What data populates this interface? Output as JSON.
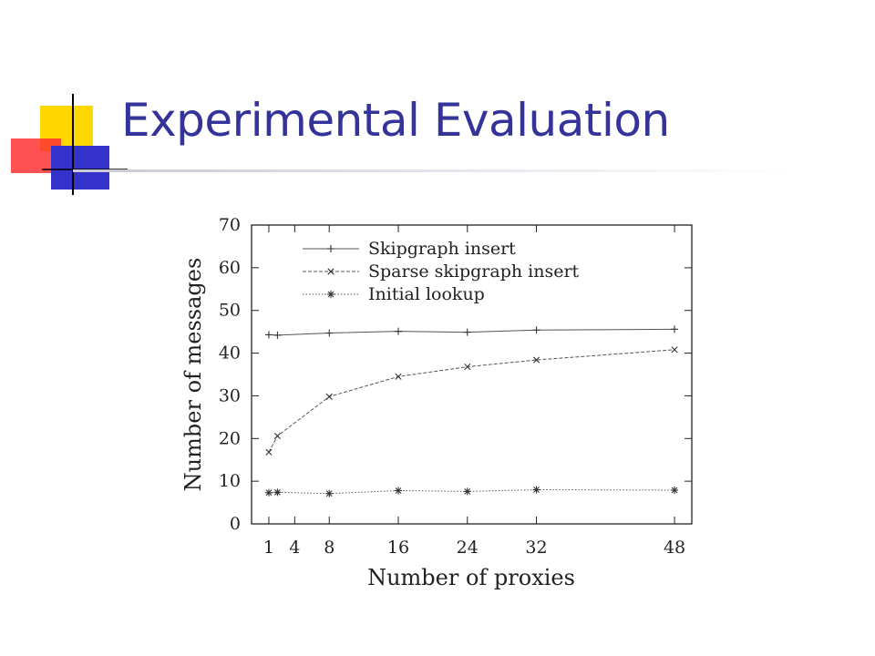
{
  "slide": {
    "title": "Experimental Evaluation"
  },
  "colors": {
    "title": "#333399",
    "accent_blue": "#3333cc",
    "accent_yellow": "#ffd700",
    "accent_red": "#ff3333"
  },
  "chart_data": {
    "type": "line",
    "xlabel": "Number of proxies",
    "ylabel": "Number of messages",
    "xlim": [
      -1,
      50
    ],
    "ylim": [
      0,
      70
    ],
    "xticks": [
      1,
      4,
      8,
      16,
      24,
      32,
      48
    ],
    "yticks": [
      0,
      10,
      20,
      30,
      40,
      50,
      60,
      70
    ],
    "grid": false,
    "legend_position": "top-left",
    "series": [
      {
        "name": "Skipgraph insert",
        "marker": "+",
        "linestyle": "solid",
        "x": [
          1,
          2,
          8,
          16,
          24,
          32,
          48
        ],
        "y": [
          44.3,
          44.2,
          44.7,
          45.1,
          44.9,
          45.4,
          45.6
        ]
      },
      {
        "name": "Sparse skipgraph insert",
        "marker": "x",
        "linestyle": "dashed",
        "x": [
          1,
          2,
          8,
          16,
          24,
          32,
          48
        ],
        "y": [
          16.8,
          20.6,
          29.8,
          34.5,
          36.8,
          38.4,
          40.8
        ]
      },
      {
        "name": "Initial lookup",
        "marker": "*",
        "linestyle": "dotted",
        "x": [
          1,
          2,
          8,
          16,
          24,
          32,
          48
        ],
        "y": [
          7.3,
          7.4,
          7.1,
          7.8,
          7.6,
          8.0,
          7.9
        ]
      }
    ]
  }
}
